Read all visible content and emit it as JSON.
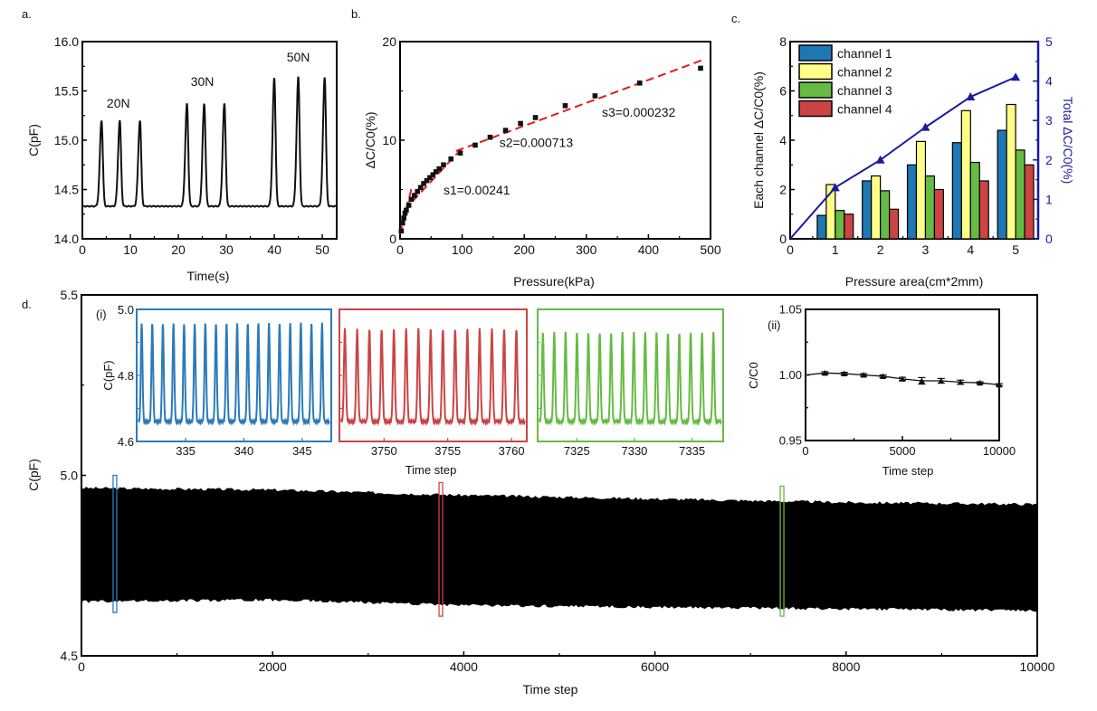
{
  "chart_data": [
    {
      "panel": "a",
      "type": "line",
      "panel_label": "a.",
      "xlabel": "Time(s)",
      "ylabel": "C(pF)",
      "xlim": [
        0,
        53
      ],
      "ylim": [
        14.0,
        16.0
      ],
      "xticks": [
        "0",
        "10",
        "20",
        "30",
        "40",
        "50"
      ],
      "yticks": [
        "14.0",
        "14.5",
        "15.0",
        "15.5",
        "16.0"
      ],
      "baseline": 14.33,
      "annotations": [
        {
          "text": "20N",
          "x": 7.5,
          "y": 15.33
        },
        {
          "text": "30N",
          "x": 25,
          "y": 15.55
        },
        {
          "text": "50N",
          "x": 45,
          "y": 15.8
        }
      ],
      "peaks": [
        {
          "x": 4,
          "y": 15.2
        },
        {
          "x": 7.8,
          "y": 15.2
        },
        {
          "x": 12,
          "y": 15.2
        },
        {
          "x": 21.8,
          "y": 15.37
        },
        {
          "x": 25.4,
          "y": 15.37
        },
        {
          "x": 29.6,
          "y": 15.37
        },
        {
          "x": 40,
          "y": 15.63
        },
        {
          "x": 45,
          "y": 15.64
        },
        {
          "x": 50.5,
          "y": 15.64
        }
      ]
    },
    {
      "panel": "b",
      "type": "scatter",
      "panel_label": "b.",
      "xlabel": "Pressure(kPa)",
      "ylabel": "ΔC/C0(%)",
      "xlim": [
        0,
        500
      ],
      "ylim": [
        0,
        20
      ],
      "xticks": [
        "0",
        "100",
        "200",
        "300",
        "400",
        "500"
      ],
      "yticks": [
        "0",
        "10",
        "20"
      ],
      "points": {
        "x": [
          2,
          4,
          6,
          8,
          10,
          14,
          18,
          23,
          28,
          33,
          38,
          43,
          48,
          53,
          58,
          63,
          70,
          82,
          97,
          121,
          145,
          170,
          194,
          218,
          266,
          314,
          386,
          484
        ],
        "y": [
          0.8,
          1.6,
          2.1,
          2.6,
          2.9,
          3.4,
          4.0,
          4.4,
          4.8,
          5.2,
          5.6,
          5.9,
          6.2,
          6.5,
          6.8,
          7.1,
          7.5,
          8.1,
          8.7,
          9.5,
          10.3,
          11.0,
          11.7,
          12.3,
          13.5,
          14.5,
          15.8,
          17.3
        ]
      },
      "fits": [
        {
          "label": "s1=0.00241",
          "x": [
            0,
            20
          ],
          "y": [
            0.5,
            5.5
          ],
          "label_pos": [
            70,
            4.5
          ]
        },
        {
          "label": "s2=0.000713",
          "x": [
            20,
            100
          ],
          "y": [
            3.8,
            9.2
          ],
          "label_pos": [
            160,
            9.3
          ]
        },
        {
          "label": "s3=0.000232",
          "x": [
            90,
            490
          ],
          "y": [
            8.9,
            18.2
          ],
          "label_pos": [
            325,
            12.4
          ]
        }
      ],
      "series_colors": {
        "points": "#111111",
        "fit": "#e31a1c"
      }
    },
    {
      "panel": "c",
      "type": "bar",
      "panel_label": "c.",
      "xlabel": "Pressure area(cm*2mm)",
      "ylabel": "Each channel   ΔC/C0(%)",
      "y2label": "Total   ΔC/C0(%)",
      "xlim": [
        0,
        5.5
      ],
      "ylim": [
        0,
        8
      ],
      "y2lim": [
        0,
        5
      ],
      "xticks": [
        "0",
        "1",
        "2",
        "3",
        "4",
        "5"
      ],
      "yticks": [
        "0",
        "2",
        "4",
        "6",
        "8"
      ],
      "y2ticks": [
        "0",
        "1",
        "2",
        "3",
        "4",
        "5"
      ],
      "categories": [
        1,
        2,
        3,
        4,
        5
      ],
      "series": [
        {
          "name": "channel 1",
          "color": "#1f77b4",
          "values": [
            0.95,
            2.35,
            3.0,
            3.9,
            4.4
          ]
        },
        {
          "name": "channel 2",
          "color": "#ffff88",
          "values": [
            2.2,
            2.55,
            3.95,
            5.2,
            5.45
          ]
        },
        {
          "name": "channel 3",
          "color": "#66bb44",
          "values": [
            1.15,
            1.95,
            2.55,
            3.1,
            3.6
          ]
        },
        {
          "name": "channel 4",
          "color": "#cc4444",
          "values": [
            1.0,
            1.2,
            2.0,
            2.35,
            3.0
          ]
        }
      ],
      "total": {
        "name": "Total",
        "color": "#1a1aa0",
        "x": [
          0,
          1,
          2,
          3,
          4,
          5
        ],
        "values": [
          0,
          1.3,
          2.0,
          2.83,
          3.6,
          4.1
        ]
      },
      "legend": "top-left"
    },
    {
      "panel": "d",
      "type": "area",
      "panel_label": "d.",
      "xlabel": "Time step",
      "ylabel": "C(pF)",
      "xlim": [
        0,
        10000
      ],
      "ylim": [
        4.5,
        5.5
      ],
      "xticks": [
        "0",
        "2000",
        "4000",
        "6000",
        "8000",
        "10000"
      ],
      "yticks": [
        "4.5",
        "5.0",
        "5.5"
      ],
      "envelope": {
        "x": [
          0,
          2000,
          4000,
          6000,
          8000,
          10000
        ],
        "upper": [
          4.965,
          4.96,
          4.945,
          4.935,
          4.925,
          4.92
        ],
        "lower": [
          4.65,
          4.655,
          4.64,
          4.635,
          4.63,
          4.625
        ]
      },
      "highlights": [
        {
          "x": 350,
          "color": "#2b7bb9",
          "ymin": 4.62,
          "ymax": 5.0
        },
        {
          "x": 3760,
          "color": "#cc4444",
          "ymin": 4.61,
          "ymax": 4.98
        },
        {
          "x": 7330,
          "color": "#66bb44",
          "ymin": 4.61,
          "ymax": 4.97
        }
      ]
    },
    {
      "panel": "d-i",
      "type": "line",
      "label": "(i)",
      "ylabel": "C(pF)",
      "xlabel": "Time step",
      "ylim": [
        4.6,
        5.0
      ],
      "yticks": [
        "4.6",
        "4.8",
        "5.0"
      ],
      "insets": [
        {
          "color": "#2b7bb9",
          "xlim": [
            330.8,
            347.5
          ],
          "xticks": [
            "335",
            "340",
            "345"
          ],
          "xtick_values": [
            335,
            340,
            345
          ],
          "cycles": 18,
          "peak": 4.96,
          "trough": 4.66
        },
        {
          "color": "#cc4444",
          "xlim": [
            3746.5,
            3761.2
          ],
          "xticks": [
            "3750",
            "3755",
            "3760"
          ],
          "xtick_values": [
            3750,
            3755,
            3760
          ],
          "cycles": 15,
          "peak": 4.94,
          "trough": 4.66
        },
        {
          "color": "#66bb44",
          "xlim": [
            7321.6,
            7337.7
          ],
          "xticks": [
            "7325",
            "7330",
            "7335"
          ],
          "xtick_values": [
            7325,
            7330,
            7335
          ],
          "cycles": 16,
          "peak": 4.93,
          "trough": 4.66
        }
      ]
    },
    {
      "panel": "d-ii",
      "type": "line",
      "label": "(ii)",
      "xlabel": "Time step",
      "ylabel": "C/C0",
      "xlim": [
        0,
        10000
      ],
      "ylim": [
        0.95,
        1.05
      ],
      "xticks": [
        "0",
        "5000",
        "10000"
      ],
      "yticks": [
        "0.95",
        "1.00",
        "1.05"
      ],
      "x": [
        0,
        1000,
        2000,
        3000,
        4000,
        5000,
        6000,
        7000,
        8000,
        9000,
        10000
      ],
      "y": [
        1.0,
        1.0015,
        1.001,
        1.0,
        0.999,
        0.997,
        0.9955,
        0.9955,
        0.9945,
        0.994,
        0.9925
      ],
      "err": [
        0,
        0.001,
        0.001,
        0.001,
        0.001,
        0.0012,
        0.0025,
        0.0018,
        0.0015,
        0.0008,
        0.0008
      ]
    }
  ]
}
